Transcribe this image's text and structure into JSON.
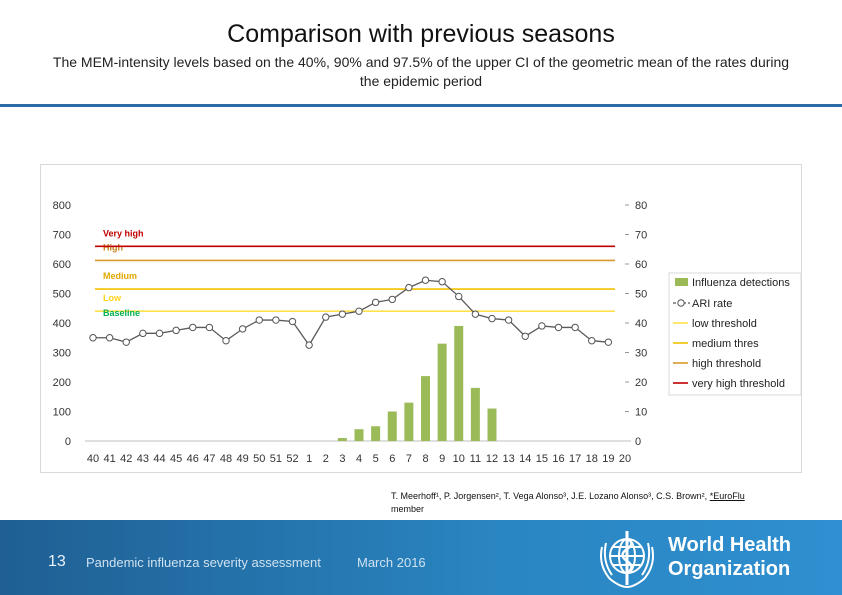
{
  "slide": {
    "title": "Comparison with previous seasons",
    "subtitle_line1": "The MEM-intensity levels based on the 40%, 90% and 97.5% of the upper CI of the geometric mean of the rates during",
    "subtitle_line2": "the epidemic period",
    "authors": "T. Meerhoff¹, P. Jorgensen², T. Vega Alonso³, J.E. Lozano Alonso³, C.S. Brown²,",
    "authors_link": "*EuroFlu",
    "authors_line2": "member"
  },
  "footer": {
    "page_number": "13",
    "title": "Pandemic influenza severity assessment",
    "date": "March 2016",
    "org_line1": "World Health",
    "org_line2": "Organization",
    "background_color": "#2a86c2"
  },
  "chart_data": {
    "type": "bar+line",
    "title": "",
    "categories": [
      "40",
      "41",
      "42",
      "43",
      "44",
      "45",
      "46",
      "47",
      "48",
      "49",
      "50",
      "51",
      "52",
      "1",
      "2",
      "3",
      "4",
      "5",
      "6",
      "7",
      "8",
      "9",
      "10",
      "11",
      "12",
      "13",
      "14",
      "15",
      "16",
      "17",
      "18",
      "19",
      "20"
    ],
    "left_axis": {
      "ylim": [
        0,
        800
      ],
      "ticks": [
        "0",
        "100",
        "200",
        "300",
        "400",
        "500",
        "600",
        "700",
        "800"
      ]
    },
    "right_axis": {
      "ylim": [
        0,
        80
      ],
      "ticks": [
        "0",
        "10",
        "20",
        "30",
        "40",
        "50",
        "60",
        "70",
        "80"
      ]
    },
    "series": [
      {
        "name": "Influenza detections",
        "type": "bar",
        "axis": "right",
        "color": "#9bbb59",
        "values": [
          0,
          0,
          0,
          0,
          0,
          0,
          0,
          0,
          0,
          0,
          0,
          0,
          0,
          0,
          0,
          1,
          4,
          5,
          10,
          13,
          22,
          33,
          39,
          18,
          11,
          0,
          0,
          0,
          0,
          0,
          0,
          0,
          0
        ]
      },
      {
        "name": "ARI rate",
        "type": "line",
        "axis": "left",
        "color": "#000000",
        "values": [
          350,
          350,
          335,
          365,
          365,
          375,
          385,
          385,
          340,
          380,
          410,
          410,
          405,
          325,
          420,
          430,
          440,
          470,
          480,
          520,
          545,
          540,
          490,
          430,
          415,
          410,
          355,
          390,
          385,
          385,
          340,
          335,
          null
        ]
      }
    ],
    "thresholds": [
      {
        "name": "low threshold",
        "label": "Low",
        "value": 440,
        "color": "#ffe14d",
        "label_color": "#ffd21a"
      },
      {
        "name": "medium thres",
        "label": "Medium",
        "value": 515,
        "color": "#f2c000",
        "label_color": "#e0a800"
      },
      {
        "name": "high threshold",
        "label": "High",
        "value": 612,
        "color": "#d99a2b",
        "label_color": "#c9801a"
      },
      {
        "name": "very high threshold",
        "label": "Very high",
        "value": 660,
        "color": "#c00000",
        "label_color": "#c00000"
      }
    ],
    "baseline_label": {
      "label": "Baseline",
      "value": 380,
      "color": "#00b050"
    },
    "legend": {
      "position": "right"
    },
    "grid": false
  }
}
